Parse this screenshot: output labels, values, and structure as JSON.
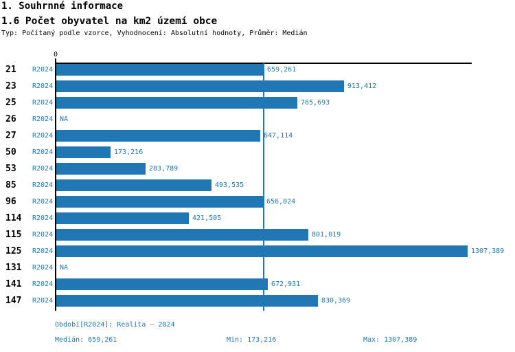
{
  "header": {
    "title": "1. Souhrnné informace",
    "subtitle": "1.6 Počet obyvatel na km2 území obce",
    "meta": "Typ: Počítaný podle vzorce, Vyhodnocení: Absolutní hodnoty, Průměr: Medián"
  },
  "chart_data": {
    "type": "bar",
    "orientation": "horizontal",
    "title": "1.6 Počet obyvatel na km2 území obce",
    "axis_zero_label": "0",
    "xlim": [
      0,
      1320
    ],
    "grid": false,
    "legend_position": "none",
    "categories": [
      "21",
      "23",
      "25",
      "26",
      "27",
      "50",
      "53",
      "85",
      "96",
      "114",
      "115",
      "125",
      "131",
      "141",
      "147"
    ],
    "series": [
      {
        "name": "R2024",
        "values": [
          659.261,
          913.412,
          765.693,
          null,
          647.114,
          173.216,
          283.789,
          493.535,
          656.024,
          421.505,
          801.019,
          1307.389,
          null,
          672.931,
          830.369
        ]
      }
    ],
    "value_labels": [
      "659,261",
      "913,412",
      "765,693",
      "NA",
      "647,114",
      "173,216",
      "283,789",
      "493,535",
      "656,024",
      "421,505",
      "801,019",
      "1307,389",
      "NA",
      "672,931",
      "830,369"
    ],
    "median_value": 659.261,
    "colors": {
      "accent": "#2077b4",
      "axis": "#000000"
    }
  },
  "footer": {
    "period": "Období[R2024]: Realita – 2024",
    "median": "Medián: 659,261",
    "min": "Min: 173,216",
    "max": "Max: 1307,389"
  }
}
